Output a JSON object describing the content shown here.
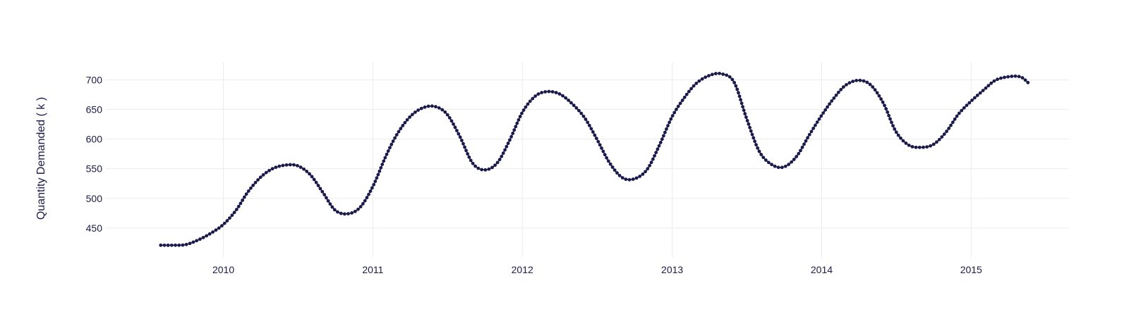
{
  "chart_data": {
    "type": "line",
    "title": "",
    "xlabel": "",
    "ylabel": "Quantity Demanded ( k )",
    "x_ticks": [
      "2010",
      "2011",
      "2012",
      "2013",
      "2014",
      "2015"
    ],
    "y_ticks": [
      450,
      500,
      550,
      600,
      650,
      700
    ],
    "xlim": [
      "2009-03-20",
      "2015-08-28"
    ],
    "ylim": [
      400,
      730
    ],
    "grid": true,
    "legend": "none",
    "colors": {
      "series": "#1b1b4b",
      "grid": "#ececec",
      "text": "#1b1b4b"
    },
    "series": [
      {
        "name": "",
        "x": [
          "2009-08-01",
          "2009-09-01",
          "2009-10-01",
          "2009-11-01",
          "2009-12-01",
          "2010-01-01",
          "2010-02-01",
          "2010-03-01",
          "2010-04-01",
          "2010-05-01",
          "2010-06-01",
          "2010-07-01",
          "2010-08-01",
          "2010-09-01",
          "2010-10-01",
          "2010-11-01",
          "2010-12-01",
          "2011-01-01",
          "2011-02-01",
          "2011-03-01",
          "2011-04-01",
          "2011-05-01",
          "2011-06-01",
          "2011-07-01",
          "2011-08-01",
          "2011-09-01",
          "2011-10-01",
          "2011-11-01",
          "2011-12-01",
          "2012-01-01",
          "2012-02-01",
          "2012-03-01",
          "2012-04-01",
          "2012-05-01",
          "2012-06-01",
          "2012-07-01",
          "2012-08-01",
          "2012-09-01",
          "2012-10-01",
          "2012-11-01",
          "2012-12-01",
          "2013-01-01",
          "2013-02-01",
          "2013-03-01",
          "2013-04-01",
          "2013-05-01",
          "2013-06-01",
          "2013-07-01",
          "2013-08-01",
          "2013-09-01",
          "2013-10-01",
          "2013-11-01",
          "2013-12-01",
          "2014-01-01",
          "2014-02-01",
          "2014-03-01",
          "2014-04-01",
          "2014-05-01",
          "2014-06-01",
          "2014-07-01",
          "2014-08-01",
          "2014-09-01",
          "2014-10-01",
          "2014-11-01",
          "2014-12-01",
          "2015-01-01",
          "2015-02-01",
          "2015-03-01",
          "2015-04-01",
          "2015-05-01",
          "2015-05-20"
        ],
        "y": [
          421,
          421,
          422,
          430,
          441,
          456,
          480,
          510,
          535,
          550,
          556,
          555,
          540,
          510,
          480,
          474,
          485,
          520,
          570,
          608,
          637,
          652,
          655,
          642,
          605,
          560,
          548,
          560,
          598,
          645,
          672,
          680,
          676,
          660,
          636,
          600,
          560,
          535,
          533,
          549,
          590,
          638,
          671,
          694,
          707,
          710,
          696,
          636,
          580,
          557,
          553,
          571,
          606,
          640,
          670,
          691,
          699,
          691,
          660,
          613,
          590,
          586,
          591,
          612,
          642,
          664,
          683,
          699,
          705,
          705,
          695
        ]
      }
    ]
  }
}
